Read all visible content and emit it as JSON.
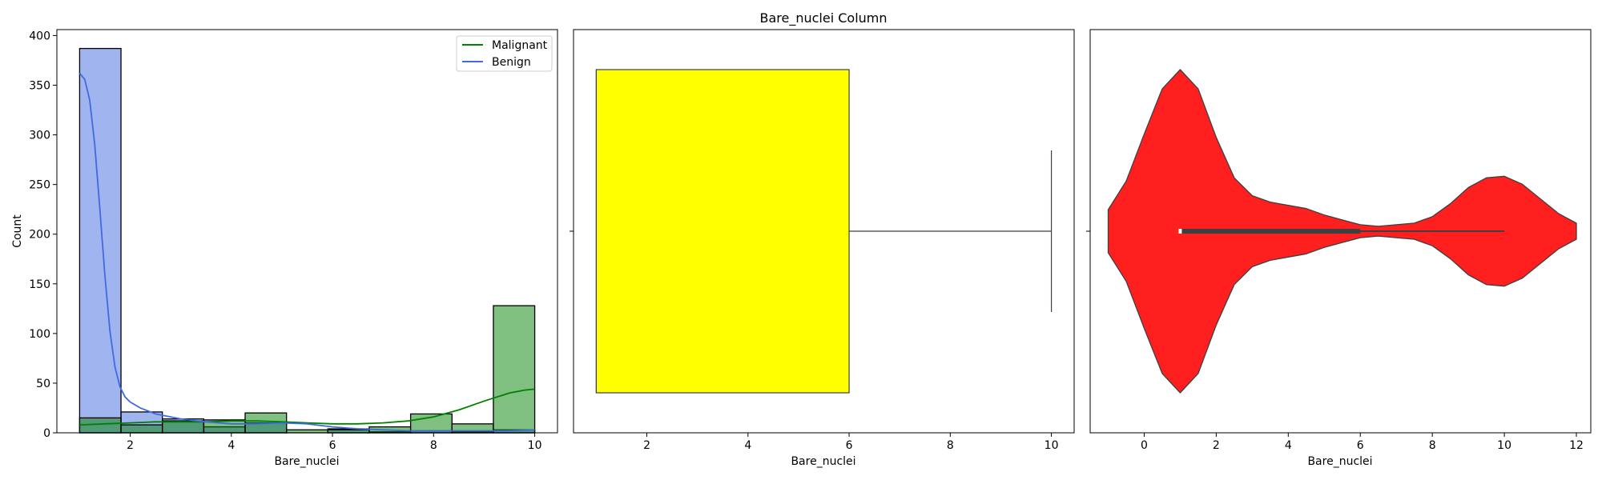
{
  "figure_title": "Bare_nuclei Column",
  "chart_data": [
    {
      "type": "histogram",
      "xlabel": "Bare_nuclei",
      "ylabel": "Count",
      "xlim": [
        0.55,
        10.45
      ],
      "ylim": [
        0,
        406
      ],
      "xticks": [
        2,
        4,
        6,
        8,
        10
      ],
      "yticks": [
        0,
        50,
        100,
        150,
        200,
        250,
        300,
        350,
        400
      ],
      "bins": [
        1.0,
        1.818,
        2.636,
        3.455,
        4.273,
        5.091,
        5.909,
        6.727,
        7.545,
        8.364,
        9.182,
        10.0
      ],
      "series": [
        {
          "name": "Benign",
          "color": "#4169e1",
          "counts": [
            387,
            21,
            14,
            6,
            10,
            0,
            4,
            1,
            2,
            1,
            3
          ],
          "kde": {
            "x": [
              1.0,
              1.1,
              1.2,
              1.3,
              1.4,
              1.5,
              1.6,
              1.7,
              1.8,
              1.9,
              2.0,
              2.2,
              2.5,
              3.0,
              3.5,
              4.0,
              4.5,
              5.0,
              5.5,
              6.0,
              6.5,
              7.0,
              7.5,
              8.0,
              8.5,
              9.0,
              9.5,
              10.0
            ],
            "y": [
              362,
              356,
              335,
              290,
              225,
              158,
              102,
              66,
              46,
              36,
              31,
              25,
              19,
              14,
              11,
              9,
              9,
              10,
              9,
              6,
              4,
              3,
              2,
              2,
              2,
              2,
              2,
              3
            ]
          }
        },
        {
          "name": "Malignant",
          "color": "#008000",
          "counts": [
            15,
            8,
            12,
            13,
            20,
            3,
            3,
            6,
            19,
            9,
            128
          ],
          "kde": {
            "x": [
              1.0,
              1.5,
              2.0,
              2.5,
              3.0,
              3.5,
              4.0,
              4.5,
              5.0,
              5.5,
              6.0,
              6.5,
              7.0,
              7.5,
              8.0,
              8.5,
              9.0,
              9.5,
              9.8,
              10.0
            ],
            "y": [
              8,
              9,
              10,
              11,
              11,
              11,
              12,
              12,
              11,
              10,
              9,
              9,
              10,
              12,
              16,
              23,
              32,
              40,
              43,
              44
            ]
          }
        }
      ],
      "legend": {
        "position": "top-right",
        "entries": [
          "Malignant",
          "Benign"
        ]
      }
    },
    {
      "type": "boxplot",
      "xlabel": "Bare_nuclei",
      "xlim": [
        0.55,
        10.45
      ],
      "xticks": [
        2,
        4,
        6,
        8,
        10
      ],
      "color": "#ffff00",
      "box": {
        "min": 1,
        "q1": 1,
        "median": 1,
        "q3": 6,
        "max": 10
      }
    },
    {
      "type": "violin",
      "xlabel": "Bare_nuclei",
      "xlim": [
        -1.5,
        12.4
      ],
      "xticks": [
        0,
        2,
        4,
        6,
        8,
        10,
        12
      ],
      "color": "#ff0000",
      "stats": {
        "q1": 1,
        "median": 1,
        "q3": 6,
        "whisker_low": 1,
        "whisker_high": 10
      },
      "density": {
        "x": [
          -1.0,
          -0.5,
          0.0,
          0.5,
          1.0,
          1.5,
          2.0,
          2.5,
          3.0,
          3.5,
          4.0,
          4.5,
          5.0,
          5.5,
          6.0,
          6.5,
          7.0,
          7.5,
          8.0,
          8.5,
          9.0,
          9.5,
          10.0,
          10.5,
          11.0,
          11.5,
          12.0
        ],
        "halfwidth": [
          0.133,
          0.31,
          0.6,
          0.88,
          1.0,
          0.88,
          0.58,
          0.33,
          0.22,
          0.18,
          0.16,
          0.14,
          0.1,
          0.07,
          0.04,
          0.03,
          0.04,
          0.05,
          0.09,
          0.17,
          0.27,
          0.33,
          0.34,
          0.29,
          0.2,
          0.11,
          0.05
        ]
      }
    }
  ]
}
